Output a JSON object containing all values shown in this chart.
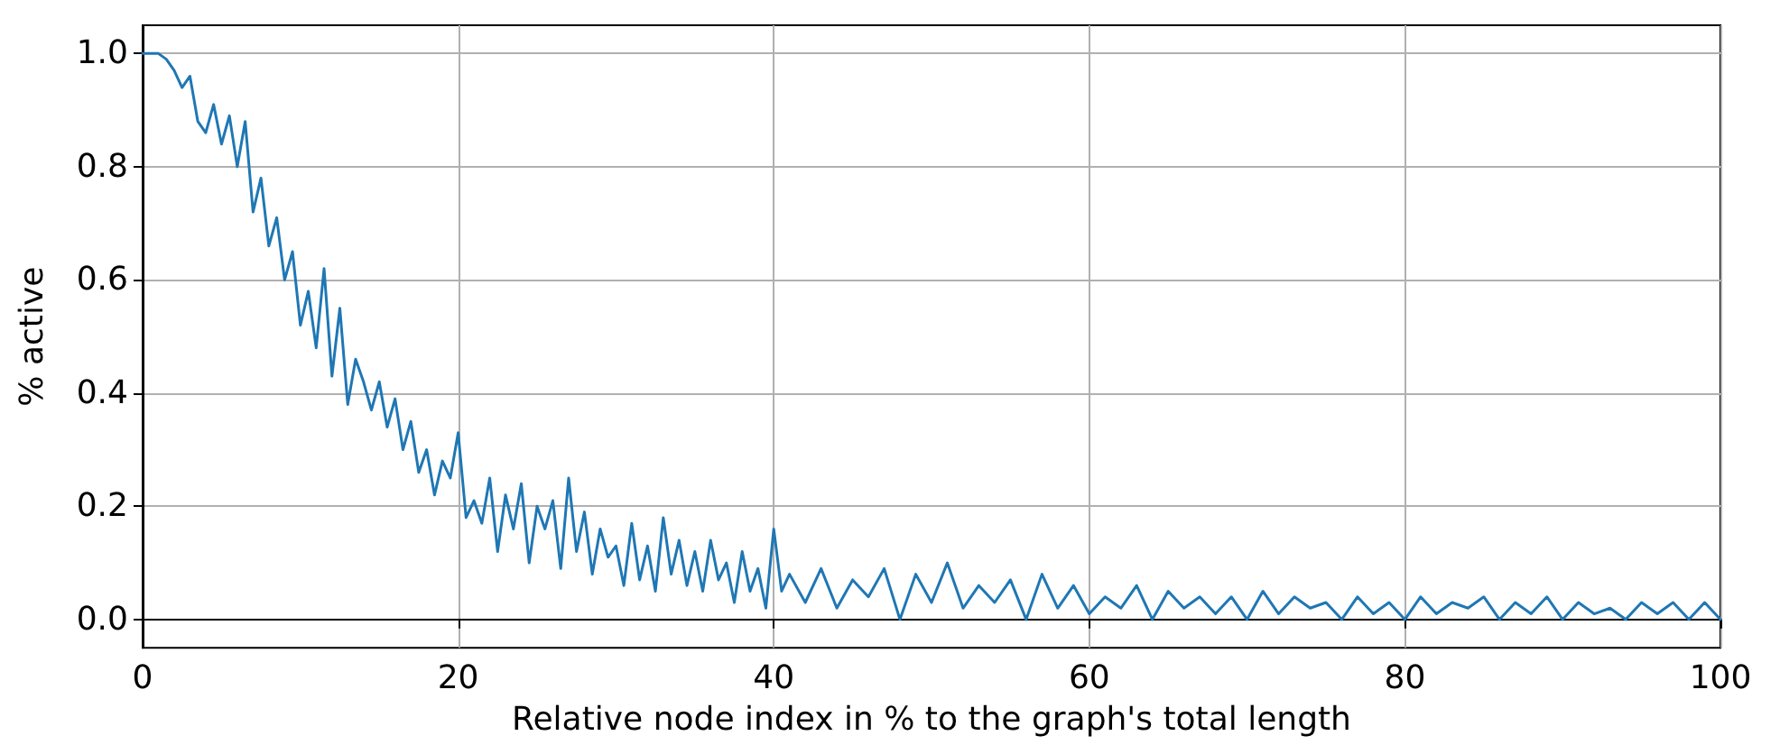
{
  "chart_data": {
    "type": "line",
    "xlabel": "Relative node index in % to the graph's total length",
    "ylabel": "% active",
    "x": [
      0,
      0.5,
      1,
      1.5,
      2,
      2.5,
      3,
      3.5,
      4,
      4.5,
      5,
      5.5,
      6,
      6.5,
      7,
      7.5,
      8,
      8.5,
      9,
      9.5,
      10,
      10.5,
      11,
      11.5,
      12,
      12.5,
      13,
      13.5,
      14,
      14.5,
      15,
      15.5,
      16,
      16.5,
      17,
      17.5,
      18,
      18.5,
      19,
      19.5,
      20,
      20.5,
      21,
      21.5,
      22,
      22.5,
      23,
      23.5,
      24,
      24.5,
      25,
      25.5,
      26,
      26.5,
      27,
      27.5,
      28,
      28.5,
      29,
      29.5,
      30,
      30.5,
      31,
      31.5,
      32,
      32.5,
      33,
      33.5,
      34,
      34.5,
      35,
      35.5,
      36,
      36.5,
      37,
      37.5,
      38,
      38.5,
      39,
      39.5,
      40,
      40.5,
      41,
      42,
      43,
      44,
      45,
      46,
      47,
      48,
      49,
      50,
      51,
      52,
      53,
      54,
      55,
      56,
      57,
      58,
      59,
      60,
      61,
      62,
      63,
      64,
      65,
      66,
      67,
      68,
      69,
      70,
      71,
      72,
      73,
      74,
      75,
      76,
      77,
      78,
      79,
      80,
      81,
      82,
      83,
      84,
      85,
      86,
      87,
      88,
      89,
      90,
      91,
      92,
      93,
      94,
      95,
      96,
      97,
      98,
      99,
      100
    ],
    "series": [
      {
        "color": "#1f77b4",
        "values": [
          1.0,
          1.0,
          1.0,
          0.99,
          0.97,
          0.94,
          0.96,
          0.88,
          0.86,
          0.91,
          0.84,
          0.89,
          0.8,
          0.88,
          0.72,
          0.78,
          0.66,
          0.71,
          0.6,
          0.65,
          0.52,
          0.58,
          0.48,
          0.62,
          0.43,
          0.55,
          0.38,
          0.46,
          0.42,
          0.37,
          0.42,
          0.34,
          0.39,
          0.3,
          0.35,
          0.26,
          0.3,
          0.22,
          0.28,
          0.25,
          0.33,
          0.18,
          0.21,
          0.17,
          0.25,
          0.12,
          0.22,
          0.16,
          0.24,
          0.1,
          0.2,
          0.16,
          0.21,
          0.09,
          0.25,
          0.12,
          0.19,
          0.08,
          0.16,
          0.11,
          0.13,
          0.06,
          0.17,
          0.07,
          0.13,
          0.05,
          0.18,
          0.08,
          0.14,
          0.06,
          0.12,
          0.05,
          0.14,
          0.07,
          0.1,
          0.03,
          0.12,
          0.05,
          0.09,
          0.02,
          0.16,
          0.05,
          0.08,
          0.03,
          0.09,
          0.02,
          0.07,
          0.04,
          0.09,
          0.0,
          0.08,
          0.03,
          0.1,
          0.02,
          0.06,
          0.03,
          0.07,
          0.0,
          0.08,
          0.02,
          0.06,
          0.01,
          0.04,
          0.02,
          0.06,
          0.0,
          0.05,
          0.02,
          0.04,
          0.01,
          0.04,
          0.0,
          0.05,
          0.01,
          0.04,
          0.02,
          0.03,
          0.0,
          0.04,
          0.01,
          0.03,
          0.0,
          0.04,
          0.01,
          0.03,
          0.02,
          0.04,
          0.0,
          0.03,
          0.01,
          0.04,
          0.0,
          0.03,
          0.01,
          0.02,
          0.0,
          0.03,
          0.01,
          0.03,
          0.0,
          0.03,
          0.0
        ]
      }
    ],
    "xlim": [
      0,
      100
    ],
    "xticks": [
      0,
      20,
      40,
      60,
      80,
      100
    ],
    "ylim": [
      -0.05,
      1.05
    ],
    "yticks": [
      {
        "value": 0,
        "label": "0.0"
      },
      {
        "value": 0.2,
        "label": "0.2"
      },
      {
        "value": 0.4,
        "label": "0.4"
      },
      {
        "value": 0.6,
        "label": "0.6"
      },
      {
        "value": 0.8,
        "label": "0.8"
      },
      {
        "value": 1,
        "label": "1.0"
      }
    ],
    "grid": true,
    "marker": "none",
    "line_style": "solid"
  }
}
